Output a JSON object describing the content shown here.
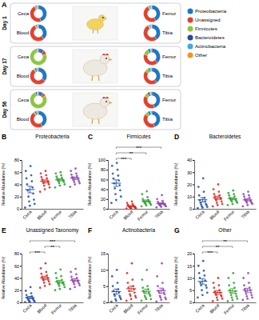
{
  "chart_data": [
    {
      "type": "donut",
      "panel_label": "A",
      "categories": [
        "Proteobacteria",
        "Unassigned",
        "Firmicutes",
        "Bacteroidetes",
        "Actinobacteria",
        "Other"
      ],
      "colors": [
        "#1f77c4",
        "#e2412e",
        "#8dc63f",
        "#2b4a9c",
        "#41a9e0",
        "#f7941d"
      ],
      "legend": "right",
      "groups": [
        {
          "label": "Day 1",
          "charts": [
            {
              "title": "Ceca",
              "values": [
                45,
                47,
                3,
                2,
                1,
                2
              ]
            },
            {
              "title": "Blood",
              "values": [
                38,
                55,
                2,
                2,
                2,
                1
              ]
            },
            {
              "title": "Femur",
              "values": [
                42,
                50,
                3,
                2,
                2,
                1
              ]
            },
            {
              "title": "Tibia",
              "values": [
                40,
                52,
                3,
                2,
                2,
                1
              ]
            }
          ]
        },
        {
          "label": "Day 17",
          "charts": [
            {
              "title": "Ceca",
              "values": [
                12,
                8,
                75,
                2,
                1,
                2
              ]
            },
            {
              "title": "Blood",
              "values": [
                35,
                55,
                3,
                3,
                2,
                2
              ]
            },
            {
              "title": "Femur",
              "values": [
                38,
                42,
                12,
                4,
                2,
                2
              ]
            },
            {
              "title": "Tibia",
              "values": [
                40,
                45,
                8,
                3,
                2,
                2
              ]
            }
          ]
        },
        {
          "label": "Day 56",
          "charts": [
            {
              "title": "Ceca",
              "values": [
                10,
                6,
                78,
                3,
                1,
                2
              ]
            },
            {
              "title": "Blood",
              "values": [
                42,
                48,
                3,
                3,
                2,
                2
              ]
            },
            {
              "title": "Femur",
              "values": [
                45,
                38,
                8,
                4,
                2,
                3
              ]
            },
            {
              "title": "Tibia",
              "values": [
                45,
                40,
                7,
                4,
                2,
                2
              ]
            }
          ]
        }
      ]
    },
    {
      "type": "strip",
      "panel_label": "B",
      "title": "Proteobacteria",
      "y_label": "Relative Abundance (%)",
      "categories": [
        "Ceca",
        "Blood",
        "Femur",
        "Tibia"
      ],
      "colors": [
        "#1f4fa8",
        "#d7261e",
        "#2ca02c",
        "#8e44ad"
      ],
      "ylim": [
        0,
        80
      ],
      "yticks": [
        0,
        20,
        40,
        60,
        80
      ],
      "values": [
        [
          2,
          5,
          8,
          12,
          15,
          20,
          25,
          30,
          35,
          40,
          45,
          50,
          55,
          62,
          70
        ],
        [
          28,
          32,
          35,
          38,
          40,
          42,
          43,
          45,
          46,
          48,
          50,
          52,
          55,
          58,
          62
        ],
        [
          35,
          38,
          40,
          42,
          44,
          45,
          46,
          47,
          48,
          50,
          51,
          53,
          55,
          58,
          60
        ],
        [
          36,
          40,
          42,
          44,
          45,
          47,
          48,
          50,
          51,
          52,
          54,
          56,
          58,
          62,
          66
        ]
      ],
      "means": [
        31.6,
        44.9,
        47.5,
        50.1
      ],
      "errors": [
        5.4,
        2.5,
        1.9,
        2.1
      ],
      "annotations": []
    },
    {
      "type": "strip",
      "panel_label": "C",
      "title": "Firmicutes",
      "y_label": "Relative Abundance (%)",
      "categories": [
        "Ceca",
        "Blood",
        "Femur",
        "Tibia"
      ],
      "colors": [
        "#1f4fa8",
        "#d7261e",
        "#2ca02c",
        "#8e44ad"
      ],
      "ylim": [
        0,
        100
      ],
      "yticks": [
        0,
        20,
        40,
        60,
        80,
        100
      ],
      "values": [
        [
          12,
          18,
          25,
          30,
          38,
          42,
          48,
          52,
          58,
          62,
          68,
          72,
          80,
          88,
          94
        ],
        [
          0.5,
          1,
          1.5,
          2,
          2.5,
          3,
          3.5,
          4,
          5,
          6,
          7,
          8,
          10,
          12,
          15
        ],
        [
          5,
          7,
          8,
          10,
          11,
          12,
          13,
          14,
          15,
          16,
          18,
          20,
          24,
          30,
          36
        ],
        [
          3,
          4,
          5,
          6,
          7,
          8,
          8,
          9,
          10,
          11,
          12,
          14,
          16,
          20,
          28
        ]
      ],
      "means": [
        52.5,
        5.4,
        15.9,
        10.7
      ],
      "errors": [
        6.7,
        1.1,
        2.2,
        1.7
      ],
      "annotations": [
        {
          "between": [
            "Ceca",
            "Blood"
          ],
          "text": "***"
        },
        {
          "between": [
            "Ceca",
            "Femur"
          ],
          "text": "**"
        },
        {
          "between": [
            "Ceca",
            "Tibia"
          ],
          "text": "***"
        }
      ]
    },
    {
      "type": "strip",
      "panel_label": "D",
      "title": "Bacteroidetes",
      "y_label": "Relative Abundance (%)",
      "categories": [
        "Ceca",
        "Blood",
        "Femur",
        "Tibia"
      ],
      "colors": [
        "#1f4fa8",
        "#d7261e",
        "#2ca02c",
        "#8e44ad"
      ],
      "ylim": [
        0,
        40
      ],
      "yticks": [
        0,
        10,
        20,
        30,
        40
      ],
      "values": [
        [
          0.5,
          1,
          1.5,
          2,
          3,
          3.5,
          4,
          5,
          6,
          7,
          9,
          11,
          14,
          18,
          25
        ],
        [
          2,
          3,
          4,
          5,
          6,
          7,
          8,
          8,
          9,
          10,
          11,
          12,
          14,
          16,
          20
        ],
        [
          3,
          4,
          5,
          6,
          6,
          7,
          7,
          8,
          8,
          9,
          10,
          11,
          12,
          13,
          15
        ],
        [
          2,
          3,
          4,
          5,
          5,
          6,
          6,
          7,
          7,
          8,
          9,
          10,
          11,
          12,
          14
        ]
      ],
      "means": [
        7.4,
        9.0,
        8.3,
        7.3
      ],
      "errors": [
        1.8,
        1.3,
        0.9,
        0.9
      ],
      "annotations": []
    },
    {
      "type": "strip",
      "panel_label": "E",
      "title": "Unassigned Taxonomy",
      "y_label": "Relative Abundance (%)",
      "categories": [
        "Ceca",
        "Blood",
        "Femur",
        "Tibia"
      ],
      "colors": [
        "#1f4fa8",
        "#d7261e",
        "#2ca02c",
        "#8e44ad"
      ],
      "ylim": [
        0,
        80
      ],
      "yticks": [
        0,
        20,
        40,
        60,
        80
      ],
      "values": [
        [
          0.5,
          1,
          1.5,
          2,
          3,
          4,
          5,
          6,
          7,
          8,
          10,
          12,
          15,
          19,
          25
        ],
        [
          24,
          27,
          30,
          32,
          34,
          36,
          37,
          38,
          40,
          42,
          44,
          47,
          50,
          56,
          64
        ],
        [
          20,
          22,
          25,
          27,
          29,
          30,
          31,
          32,
          33,
          35,
          37,
          40,
          43,
          48,
          54
        ],
        [
          22,
          25,
          28,
          30,
          31,
          33,
          34,
          35,
          36,
          38,
          40,
          42,
          46,
          50,
          55
        ]
      ],
      "means": [
        7.9,
        40.1,
        33.7,
        36.3
      ],
      "errors": [
        1.9,
        2.8,
        2.4,
        2.3
      ],
      "annotations": [
        {
          "between": [
            "Ceca",
            "Blood"
          ],
          "text": "***"
        },
        {
          "between": [
            "Blood",
            "Femur"
          ],
          "text": "**"
        },
        {
          "between": [
            "Ceca",
            "Tibia"
          ],
          "text": "***"
        }
      ]
    },
    {
      "type": "strip",
      "panel_label": "F",
      "title": "Actinobacteria",
      "y_label": "Relative Abundance (%)",
      "categories": [
        "Ceca",
        "Blood",
        "Femur",
        "Tibia"
      ],
      "colors": [
        "#1f4fa8",
        "#d7261e",
        "#2ca02c",
        "#8e44ad"
      ],
      "ylim": [
        0,
        15
      ],
      "yticks": [
        0,
        5,
        10,
        15
      ],
      "values": [
        [
          0.2,
          0.5,
          1,
          1,
          1.5,
          2,
          2,
          2.5,
          3,
          3.5,
          4,
          5,
          6,
          8,
          10
        ],
        [
          0.5,
          1,
          1.5,
          2,
          2,
          2.5,
          3,
          3.5,
          4,
          4.5,
          5,
          6,
          7,
          9,
          12
        ],
        [
          0.5,
          1,
          1,
          1.5,
          2,
          2,
          2.5,
          3,
          3,
          3.5,
          4,
          4.5,
          5,
          7,
          10
        ],
        [
          0.3,
          0.8,
          1,
          1.5,
          1.5,
          2,
          2.5,
          3,
          3,
          3.5,
          4,
          5,
          6,
          8,
          12
        ]
      ],
      "means": [
        3.3,
        4.2,
        3.4,
        3.6
      ],
      "errors": [
        0.8,
        0.8,
        0.7,
        0.8
      ],
      "annotations": []
    },
    {
      "type": "strip",
      "panel_label": "G",
      "title": "Other",
      "y_label": "Relative Abundance (%)",
      "categories": [
        "Ceca",
        "Blood",
        "Femur",
        "Tibia"
      ],
      "colors": [
        "#1f4fa8",
        "#d7261e",
        "#2ca02c",
        "#8e44ad"
      ],
      "ylim": [
        0,
        20
      ],
      "yticks": [
        0,
        5,
        10,
        15,
        20
      ],
      "values": [
        [
          2,
          3,
          4,
          5,
          6,
          7,
          7,
          8,
          9,
          10,
          11,
          12,
          13,
          15,
          17
        ],
        [
          0.5,
          1,
          1.5,
          2,
          2.5,
          3,
          3,
          3.5,
          4,
          4.5,
          5,
          6,
          7,
          8,
          10
        ],
        [
          0.5,
          1,
          1.5,
          2,
          2.5,
          3,
          3.5,
          4,
          4.5,
          5,
          6,
          7,
          8,
          10,
          12
        ],
        [
          1,
          1.5,
          2,
          2.5,
          3,
          3.5,
          4,
          4.5,
          5,
          5.5,
          6,
          7,
          8,
          10,
          12
        ]
      ],
      "means": [
        8.6,
        4.1,
        4.7,
        5.0
      ],
      "errors": [
        1.1,
        0.7,
        0.9,
        0.8
      ],
      "annotations": [
        {
          "between": [
            "Ceca",
            "Blood"
          ],
          "text": "***"
        },
        {
          "between": [
            "Ceca",
            "Femur"
          ],
          "text": "**"
        },
        {
          "between": [
            "Ceca",
            "Tibia"
          ],
          "text": "**"
        }
      ]
    }
  ]
}
